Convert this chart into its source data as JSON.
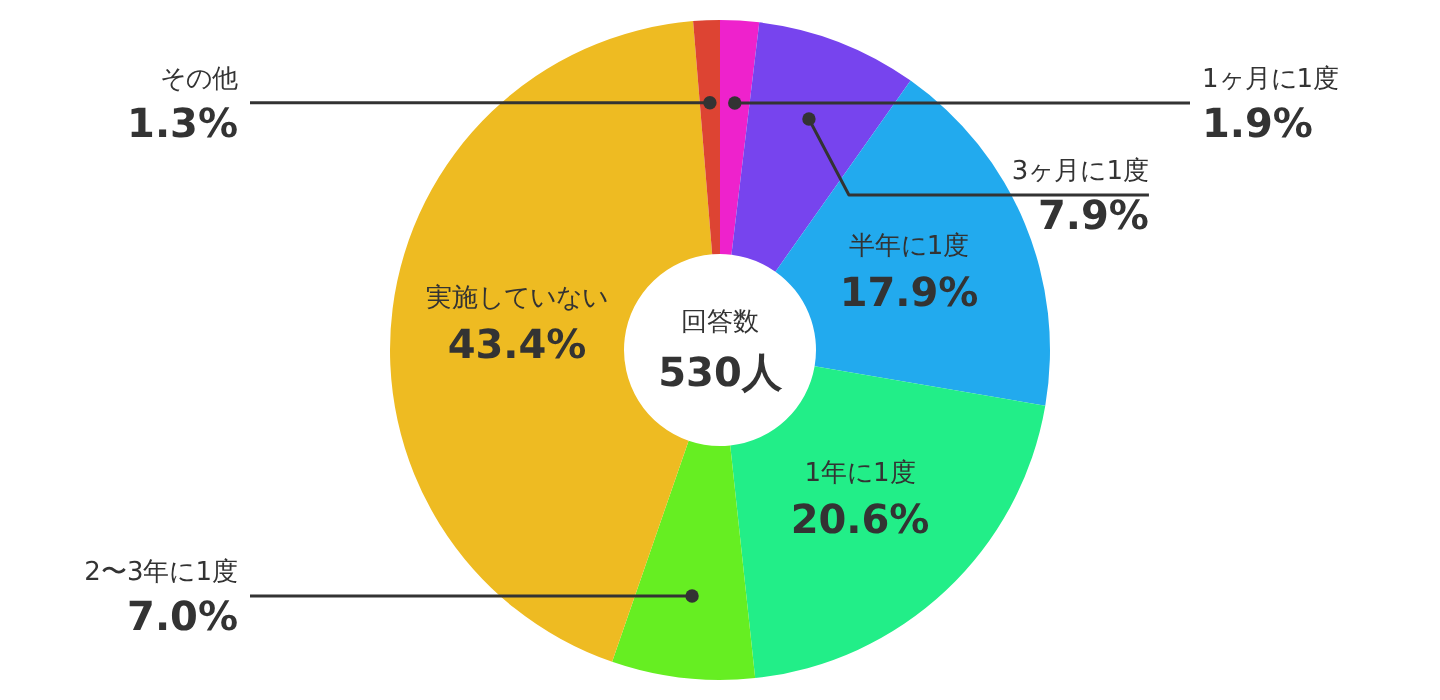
{
  "chart_data": {
    "type": "donut",
    "categories": [
      "1ヶ月に1度",
      "3ヶ月に1度",
      "半年に1度",
      "1年に1度",
      "2〜3年に1度",
      "実施していない",
      "その他"
    ],
    "values": [
      1.9,
      7.9,
      17.9,
      20.6,
      7.0,
      43.4,
      1.3
    ],
    "colors": [
      "#ee22cc",
      "#7744ee",
      "#22aaee",
      "#22ee88",
      "#66ee22",
      "#eebb22",
      "#dd4433"
    ],
    "value_labels": [
      "1.9%",
      "7.9%",
      "17.9%",
      "20.6%",
      "7.0%",
      "43.4%",
      "1.3%"
    ],
    "annotations": [
      "回答数",
      "530人"
    ]
  }
}
